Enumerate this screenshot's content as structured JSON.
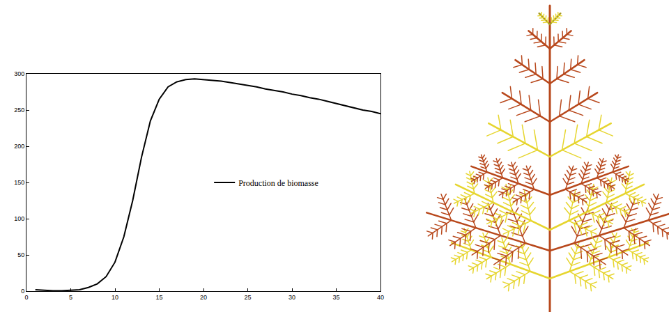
{
  "chart_data": {
    "type": "line",
    "x": [
      1,
      2,
      3,
      4,
      5,
      6,
      7,
      8,
      9,
      10,
      11,
      12,
      13,
      14,
      15,
      16,
      17,
      18,
      19,
      20,
      21,
      22,
      23,
      24,
      25,
      26,
      27,
      28,
      29,
      30,
      31,
      32,
      33,
      34,
      35,
      36,
      37,
      38,
      39,
      40
    ],
    "series": [
      {
        "name": "Production de biomasse",
        "color": "#000000",
        "values": [
          2,
          1,
          0.5,
          0.5,
          1,
          2,
          5,
          10,
          20,
          40,
          75,
          125,
          185,
          235,
          265,
          282,
          289,
          292,
          293,
          292,
          291,
          290,
          288,
          286,
          284,
          282,
          279,
          277,
          275,
          272,
          270,
          267,
          265,
          262,
          259,
          256,
          253,
          250,
          248,
          245
        ]
      }
    ],
    "xlim": [
      0,
      40
    ],
    "xticks": [
      0,
      5,
      10,
      15,
      20,
      25,
      30,
      35,
      40
    ],
    "ylim": [
      0,
      300
    ],
    "yticks": [
      0,
      50,
      100,
      150,
      200,
      250,
      300
    ],
    "grid": false,
    "legend": "right"
  }
}
